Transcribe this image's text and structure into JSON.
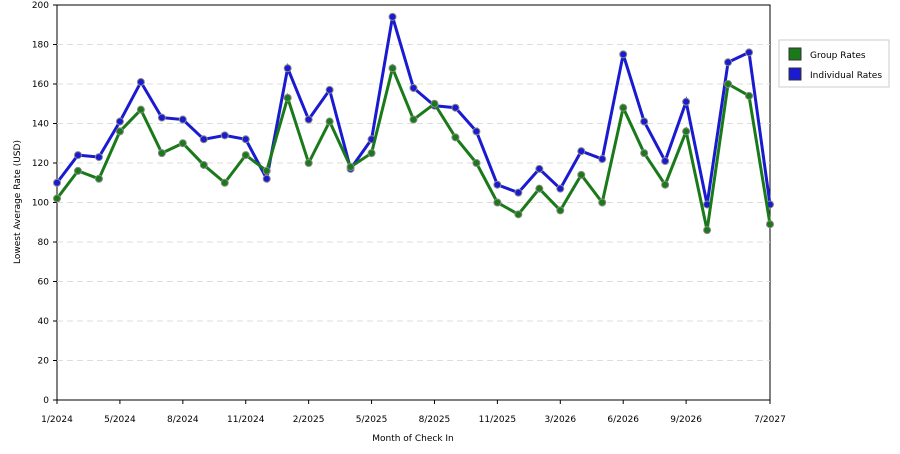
{
  "chart_data": {
    "type": "line",
    "x_label": "Month of Check In",
    "y_label": "Lowest Average Rate (USD)",
    "categories": [
      "1/2024",
      null,
      null,
      "5/2024",
      null,
      null,
      "8/2024",
      null,
      null,
      "11/2024",
      null,
      null,
      "2/2025",
      null,
      null,
      "5/2025",
      null,
      null,
      "8/2025",
      null,
      null,
      "11/2025",
      null,
      null,
      "3/2026",
      null,
      null,
      "6/2026",
      null,
      null,
      "9/2026",
      null,
      null,
      null,
      "7/2027"
    ],
    "series": [
      {
        "name": "Group Rates",
        "color": "#1a7a1a",
        "values": [
          102,
          116,
          112,
          136,
          147,
          125,
          130,
          119,
          110,
          124,
          116,
          153,
          120,
          141,
          118,
          125,
          168,
          142,
          150,
          133,
          120,
          100,
          94,
          107,
          96,
          114,
          100,
          148,
          125,
          109,
          136,
          86,
          160,
          154,
          89
        ]
      },
      {
        "name": "Individual Rates",
        "color": "#1a1ad0",
        "values": [
          110,
          124,
          123,
          141,
          161,
          143,
          142,
          132,
          134,
          132,
          112,
          168,
          142,
          157,
          117,
          132,
          194,
          158,
          149,
          148,
          136,
          109,
          105,
          117,
          107,
          126,
          122,
          175,
          141,
          121,
          151,
          99,
          171,
          176,
          99
        ]
      }
    ],
    "ylim": [
      0,
      200
    ],
    "yticks": [
      0,
      20,
      40,
      60,
      80,
      100,
      120,
      140,
      160,
      180,
      200
    ],
    "grid": true
  }
}
